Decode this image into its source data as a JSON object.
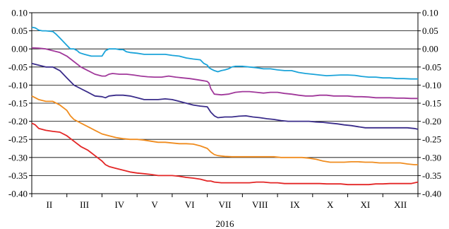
{
  "chart_data": {
    "type": "line",
    "title": "",
    "xlabel": "2016",
    "ylabel": "",
    "ylim": [
      -0.4,
      0.1
    ],
    "y_ticks": [
      "0.10",
      "0.05",
      "0.00",
      "-0.05",
      "-0.10",
      "-0.15",
      "-0.20",
      "-0.25",
      "-0.30",
      "-0.35",
      "-0.40"
    ],
    "y_ticks_right": [
      "0.10",
      "0.05",
      "0.00",
      "-0.05",
      "-0.10",
      "-0.15",
      "-0.20",
      "-0.25",
      "-0.30",
      "-0.35",
      "-0.40"
    ],
    "categories": [
      "II",
      "III",
      "IV",
      "V",
      "VI",
      "VII",
      "VIII",
      "IX",
      "X",
      "XI",
      "XII"
    ],
    "grid": "horizontal",
    "legend": "none",
    "series": [
      {
        "color": "#1aa3d9",
        "x": [
          0.0,
          0.1,
          0.2,
          0.3,
          0.4,
          0.5,
          0.6,
          0.7,
          0.8,
          0.9,
          1.0,
          1.1,
          1.2,
          1.3,
          1.35,
          1.4,
          1.5,
          1.7,
          1.9,
          2.0,
          2.1,
          2.2,
          2.3,
          2.4,
          2.5,
          2.6,
          2.7,
          2.8,
          3.0,
          3.2,
          3.4,
          3.6,
          3.8,
          4.0,
          4.2,
          4.4,
          4.6,
          4.8,
          4.9,
          5.0,
          5.05,
          5.1,
          5.2,
          5.3,
          5.4,
          5.5,
          5.6,
          5.7,
          5.8,
          6.0,
          6.2,
          6.4,
          6.6,
          6.8,
          7.0,
          7.2,
          7.4,
          7.6,
          7.8,
          8.0,
          8.2,
          8.4,
          8.6,
          8.8,
          9.0,
          9.2,
          9.4,
          9.6,
          9.8,
          10.0,
          10.2,
          10.4,
          10.6,
          10.8,
          11.0
        ],
        "y": [
          0.06,
          0.058,
          0.052,
          0.05,
          0.05,
          0.049,
          0.048,
          0.04,
          0.03,
          0.02,
          0.01,
          0.0,
          0.0,
          -0.005,
          -0.01,
          -0.012,
          -0.015,
          -0.02,
          -0.02,
          -0.02,
          -0.005,
          0.0,
          0.0,
          0.0,
          -0.002,
          -0.002,
          -0.008,
          -0.01,
          -0.012,
          -0.015,
          -0.015,
          -0.015,
          -0.015,
          -0.018,
          -0.02,
          -0.025,
          -0.028,
          -0.03,
          -0.04,
          -0.045,
          -0.052,
          -0.055,
          -0.06,
          -0.063,
          -0.06,
          -0.058,
          -0.055,
          -0.05,
          -0.048,
          -0.048,
          -0.05,
          -0.052,
          -0.055,
          -0.055,
          -0.058,
          -0.06,
          -0.06,
          -0.065,
          -0.068,
          -0.07,
          -0.072,
          -0.074,
          -0.073,
          -0.072,
          -0.072,
          -0.073,
          -0.076,
          -0.078,
          -0.078,
          -0.08,
          -0.08,
          -0.082,
          -0.082,
          -0.083,
          -0.083
        ]
      },
      {
        "color": "#a0389a",
        "x": [
          0.0,
          0.2,
          0.4,
          0.6,
          0.8,
          1.0,
          1.2,
          1.4,
          1.6,
          1.8,
          2.0,
          2.1,
          2.2,
          2.3,
          2.5,
          2.7,
          2.9,
          3.1,
          3.3,
          3.5,
          3.7,
          3.9,
          4.1,
          4.3,
          4.5,
          4.7,
          4.9,
          5.0,
          5.05,
          5.1,
          5.2,
          5.4,
          5.6,
          5.8,
          6.0,
          6.2,
          6.4,
          6.6,
          6.8,
          7.0,
          7.2,
          7.4,
          7.6,
          7.8,
          8.0,
          8.2,
          8.4,
          8.6,
          8.8,
          9.0,
          9.2,
          9.4,
          9.6,
          9.8,
          10.0,
          10.2,
          10.4,
          10.6,
          10.8,
          11.0
        ],
        "y": [
          0.003,
          0.002,
          0.0,
          -0.005,
          -0.01,
          -0.02,
          -0.035,
          -0.05,
          -0.06,
          -0.07,
          -0.075,
          -0.075,
          -0.07,
          -0.068,
          -0.07,
          -0.07,
          -0.072,
          -0.075,
          -0.077,
          -0.078,
          -0.078,
          -0.075,
          -0.078,
          -0.08,
          -0.082,
          -0.085,
          -0.088,
          -0.09,
          -0.095,
          -0.11,
          -0.125,
          -0.127,
          -0.125,
          -0.12,
          -0.118,
          -0.118,
          -0.12,
          -0.122,
          -0.12,
          -0.12,
          -0.123,
          -0.125,
          -0.128,
          -0.13,
          -0.13,
          -0.128,
          -0.128,
          -0.13,
          -0.13,
          -0.13,
          -0.132,
          -0.132,
          -0.133,
          -0.135,
          -0.135,
          -0.135,
          -0.136,
          -0.136,
          -0.137,
          -0.137
        ]
      },
      {
        "color": "#3a2c8a",
        "x": [
          0.0,
          0.2,
          0.4,
          0.6,
          0.8,
          1.0,
          1.2,
          1.4,
          1.6,
          1.8,
          2.0,
          2.1,
          2.2,
          2.4,
          2.6,
          2.8,
          3.0,
          3.2,
          3.4,
          3.6,
          3.8,
          4.0,
          4.2,
          4.4,
          4.6,
          4.8,
          5.0,
          5.1,
          5.2,
          5.3,
          5.5,
          5.7,
          5.9,
          6.1,
          6.3,
          6.5,
          6.7,
          6.9,
          7.1,
          7.3,
          7.5,
          7.7,
          7.9,
          8.1,
          8.3,
          8.5,
          8.7,
          8.9,
          9.1,
          9.3,
          9.5,
          9.7,
          9.9,
          10.1,
          10.3,
          10.5,
          10.7,
          10.9,
          11.0
        ],
        "y": [
          -0.04,
          -0.045,
          -0.05,
          -0.05,
          -0.06,
          -0.08,
          -0.1,
          -0.11,
          -0.12,
          -0.13,
          -0.132,
          -0.135,
          -0.13,
          -0.128,
          -0.128,
          -0.13,
          -0.135,
          -0.14,
          -0.14,
          -0.14,
          -0.138,
          -0.14,
          -0.145,
          -0.15,
          -0.155,
          -0.158,
          -0.16,
          -0.175,
          -0.185,
          -0.19,
          -0.188,
          -0.188,
          -0.186,
          -0.185,
          -0.188,
          -0.19,
          -0.193,
          -0.195,
          -0.198,
          -0.2,
          -0.2,
          -0.2,
          -0.2,
          -0.202,
          -0.203,
          -0.205,
          -0.207,
          -0.21,
          -0.212,
          -0.215,
          -0.218,
          -0.218,
          -0.218,
          -0.218,
          -0.218,
          -0.218,
          -0.218,
          -0.22,
          -0.222
        ]
      },
      {
        "color": "#f08c1e",
        "x": [
          0.0,
          0.1,
          0.2,
          0.4,
          0.6,
          0.8,
          1.0,
          1.1,
          1.2,
          1.4,
          1.6,
          1.8,
          2.0,
          2.2,
          2.4,
          2.6,
          2.8,
          3.0,
          3.2,
          3.4,
          3.6,
          3.8,
          4.0,
          4.2,
          4.4,
          4.6,
          4.8,
          5.0,
          5.1,
          5.2,
          5.3,
          5.5,
          5.7,
          5.9,
          6.1,
          6.3,
          6.5,
          6.7,
          6.9,
          7.1,
          7.3,
          7.5,
          7.7,
          7.9,
          8.1,
          8.3,
          8.5,
          8.7,
          8.9,
          9.1,
          9.3,
          9.5,
          9.7,
          9.9,
          10.1,
          10.3,
          10.5,
          10.7,
          10.9,
          11.0
        ],
        "y": [
          -0.13,
          -0.135,
          -0.14,
          -0.145,
          -0.145,
          -0.155,
          -0.17,
          -0.185,
          -0.195,
          -0.205,
          -0.215,
          -0.225,
          -0.235,
          -0.24,
          -0.245,
          -0.248,
          -0.25,
          -0.25,
          -0.252,
          -0.255,
          -0.258,
          -0.258,
          -0.26,
          -0.262,
          -0.262,
          -0.263,
          -0.268,
          -0.275,
          -0.285,
          -0.292,
          -0.295,
          -0.297,
          -0.298,
          -0.298,
          -0.298,
          -0.298,
          -0.298,
          -0.298,
          -0.298,
          -0.3,
          -0.3,
          -0.3,
          -0.3,
          -0.302,
          -0.305,
          -0.31,
          -0.313,
          -0.313,
          -0.313,
          -0.312,
          -0.312,
          -0.313,
          -0.313,
          -0.315,
          -0.315,
          -0.315,
          -0.315,
          -0.318,
          -0.32,
          -0.32
        ]
      },
      {
        "color": "#e32626",
        "x": [
          0.0,
          0.1,
          0.2,
          0.4,
          0.6,
          0.8,
          1.0,
          1.2,
          1.4,
          1.6,
          1.8,
          2.0,
          2.1,
          2.2,
          2.4,
          2.6,
          2.8,
          3.0,
          3.2,
          3.4,
          3.6,
          3.8,
          4.0,
          4.2,
          4.4,
          4.6,
          4.8,
          5.0,
          5.1,
          5.2,
          5.4,
          5.6,
          5.8,
          6.0,
          6.2,
          6.4,
          6.6,
          6.8,
          7.0,
          7.2,
          7.4,
          7.6,
          7.8,
          8.0,
          8.2,
          8.4,
          8.6,
          8.8,
          9.0,
          9.2,
          9.4,
          9.6,
          9.8,
          10.0,
          10.2,
          10.4,
          10.6,
          10.8,
          11.0
        ],
        "y": [
          -0.205,
          -0.21,
          -0.22,
          -0.225,
          -0.228,
          -0.23,
          -0.24,
          -0.255,
          -0.27,
          -0.28,
          -0.295,
          -0.31,
          -0.32,
          -0.325,
          -0.33,
          -0.335,
          -0.34,
          -0.343,
          -0.345,
          -0.347,
          -0.35,
          -0.35,
          -0.35,
          -0.352,
          -0.355,
          -0.357,
          -0.36,
          -0.365,
          -0.365,
          -0.368,
          -0.37,
          -0.37,
          -0.37,
          -0.37,
          -0.37,
          -0.368,
          -0.368,
          -0.37,
          -0.37,
          -0.372,
          -0.372,
          -0.372,
          -0.372,
          -0.372,
          -0.372,
          -0.373,
          -0.373,
          -0.373,
          -0.375,
          -0.375,
          -0.375,
          -0.375,
          -0.373,
          -0.373,
          -0.372,
          -0.372,
          -0.372,
          -0.372,
          -0.368
        ]
      }
    ]
  }
}
